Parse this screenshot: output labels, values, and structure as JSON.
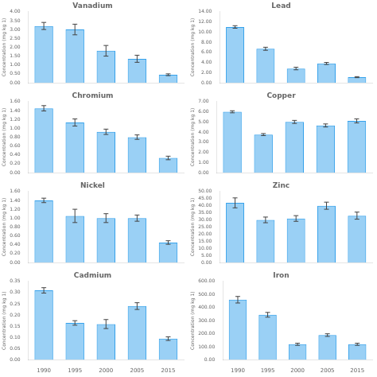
{
  "chart_data": [
    {
      "type": "bar",
      "title": "Vanadium",
      "ylabel": "Concentration (mg kg 1)",
      "categories": [
        "1990",
        "1995",
        "2000",
        "2005",
        "2015"
      ],
      "values": [
        3.2,
        3.0,
        1.8,
        1.35,
        0.45
      ],
      "errors": [
        0.2,
        0.3,
        0.3,
        0.2,
        0.05
      ],
      "ylim": [
        0,
        4.0
      ],
      "yticks": [
        {
          "value": 0.0,
          "label": "0.00"
        },
        {
          "value": 0.5,
          "label": "0.50"
        },
        {
          "value": 1.0,
          "label": "1.00"
        },
        {
          "value": 1.5,
          "label": "1.50"
        },
        {
          "value": 2.0,
          "label": "2.00"
        },
        {
          "value": 2.5,
          "label": "2.50"
        },
        {
          "value": 3.0,
          "label": "3.00"
        },
        {
          "value": 3.5,
          "label": "3.50"
        },
        {
          "value": 4.0,
          "label": "4.00"
        }
      ],
      "grid": false,
      "tick_labels": "y"
    },
    {
      "type": "bar",
      "title": "Lead",
      "ylabel": "Concentration (mg kg 1)",
      "categories": [
        "1990",
        "1995",
        "2000",
        "2005",
        "2015"
      ],
      "values": [
        11.0,
        6.7,
        2.8,
        3.8,
        1.1
      ],
      "errors": [
        0.25,
        0.3,
        0.25,
        0.2,
        0.1
      ],
      "ylim": [
        0,
        14.0
      ],
      "yticks": [
        {
          "value": 0.0,
          "label": "0.00"
        },
        {
          "value": 2.0,
          "label": "2.00"
        },
        {
          "value": 4.0,
          "label": "4.00"
        },
        {
          "value": 6.0,
          "label": "6.00"
        },
        {
          "value": 8.0,
          "label": "8.00"
        },
        {
          "value": 10.0,
          "label": "10.00"
        },
        {
          "value": 12.0,
          "label": "12.00"
        },
        {
          "value": 14.0,
          "label": "14.00"
        }
      ],
      "grid": false,
      "tick_labels": "y"
    },
    {
      "type": "bar",
      "title": "Chromium",
      "ylabel": "Concentration (mg kg 1)",
      "categories": [
        "1990",
        "1995",
        "2000",
        "2005",
        "2015"
      ],
      "values": [
        1.45,
        1.13,
        0.92,
        0.8,
        0.33
      ],
      "errors": [
        0.06,
        0.08,
        0.06,
        0.05,
        0.04
      ],
      "ylim": [
        0,
        1.6
      ],
      "yticks": [
        {
          "value": 0.0,
          "label": "0.00"
        },
        {
          "value": 0.2,
          "label": "0.20"
        },
        {
          "value": 0.4,
          "label": "0.40"
        },
        {
          "value": 0.6,
          "label": "0.60"
        },
        {
          "value": 0.8,
          "label": "0.80"
        },
        {
          "value": 1.0,
          "label": "1.00"
        },
        {
          "value": 1.2,
          "label": "1.20"
        },
        {
          "value": 1.4,
          "label": "1.40"
        },
        {
          "value": 1.6,
          "label": "1.60"
        }
      ],
      "grid": false,
      "tick_labels": "y"
    },
    {
      "type": "bar",
      "title": "Copper",
      "ylabel": "Concentration (mg kg 1)",
      "categories": [
        "1990",
        "1995",
        "2000",
        "2005",
        "2015"
      ],
      "values": [
        6.0,
        3.75,
        5.0,
        4.65,
        5.1
      ],
      "errors": [
        0.1,
        0.1,
        0.15,
        0.15,
        0.2
      ],
      "ylim": [
        0,
        7.0
      ],
      "yticks": [
        {
          "value": 0.0,
          "label": "0.00"
        },
        {
          "value": 1.0,
          "label": "1.00"
        },
        {
          "value": 2.0,
          "label": "2.00"
        },
        {
          "value": 3.0,
          "label": "3.00"
        },
        {
          "value": 4.0,
          "label": "4.00"
        },
        {
          "value": 5.0,
          "label": "5.00"
        },
        {
          "value": 6.0,
          "label": "6.00"
        },
        {
          "value": 7.0,
          "label": "7.00"
        }
      ],
      "grid": false,
      "tick_labels": "y"
    },
    {
      "type": "bar",
      "title": "Nickel",
      "ylabel": "Concentration (mg kg 1)",
      "categories": [
        "1990",
        "1995",
        "2000",
        "2005",
        "2015"
      ],
      "values": [
        1.4,
        1.05,
        1.0,
        1.0,
        0.45
      ],
      "errors": [
        0.05,
        0.15,
        0.1,
        0.07,
        0.04
      ],
      "ylim": [
        0,
        1.6
      ],
      "yticks": [
        {
          "value": 0.0,
          "label": "0.00"
        },
        {
          "value": 0.2,
          "label": "0.20"
        },
        {
          "value": 0.4,
          "label": "0.40"
        },
        {
          "value": 0.6,
          "label": "0.60"
        },
        {
          "value": 0.8,
          "label": "0.80"
        },
        {
          "value": 1.0,
          "label": "1.00"
        },
        {
          "value": 1.2,
          "label": "1.20"
        },
        {
          "value": 1.4,
          "label": "1.40"
        },
        {
          "value": 1.6,
          "label": "1.60"
        }
      ],
      "grid": false,
      "tick_labels": "y"
    },
    {
      "type": "bar",
      "title": "Zinc",
      "ylabel": "Concentration (mg kg 1)",
      "categories": [
        "1990",
        "1995",
        "2000",
        "2005",
        "2015"
      ],
      "values": [
        42.0,
        30.0,
        31.0,
        40.0,
        33.0
      ],
      "errors": [
        3.5,
        2.0,
        2.0,
        2.5,
        2.5
      ],
      "ylim": [
        0,
        50.0
      ],
      "yticks": [
        {
          "value": 0.0,
          "label": "0.00"
        },
        {
          "value": 5.0,
          "label": "5.00"
        },
        {
          "value": 10.0,
          "label": "10.00"
        },
        {
          "value": 15.0,
          "label": "15.00"
        },
        {
          "value": 20.0,
          "label": "20.00"
        },
        {
          "value": 25.0,
          "label": "25.00"
        },
        {
          "value": 30.0,
          "label": "30.00"
        },
        {
          "value": 35.0,
          "label": "35.00"
        },
        {
          "value": 40.0,
          "label": "40.00"
        },
        {
          "value": 45.0,
          "label": "45.00"
        },
        {
          "value": 50.0,
          "label": "50.00"
        }
      ],
      "grid": false,
      "tick_labels": "y"
    },
    {
      "type": "bar",
      "title": "Cadmium",
      "ylabel": "Concentration (mg kg 1)",
      "categories": [
        "1990",
        "1995",
        "2000",
        "2005",
        "2015"
      ],
      "values": [
        0.31,
        0.165,
        0.16,
        0.24,
        0.095
      ],
      "errors": [
        0.012,
        0.01,
        0.02,
        0.015,
        0.008
      ],
      "ylim": [
        0,
        0.35
      ],
      "yticks": [
        {
          "value": 0.0,
          "label": "0.00"
        },
        {
          "value": 0.05,
          "label": "0.05"
        },
        {
          "value": 0.1,
          "label": "0.10"
        },
        {
          "value": 0.15,
          "label": "0.15"
        },
        {
          "value": 0.2,
          "label": "0.20"
        },
        {
          "value": 0.25,
          "label": "0.25"
        },
        {
          "value": 0.3,
          "label": "0.30"
        },
        {
          "value": 0.35,
          "label": "0.35"
        }
      ],
      "grid": false
    },
    {
      "type": "bar",
      "title": "Iron",
      "ylabel": "Concentration (mg kg 1)",
      "categories": [
        "1990",
        "1995",
        "2000",
        "2005",
        "2015"
      ],
      "values": [
        460.0,
        345.0,
        120.0,
        190.0,
        120.0
      ],
      "errors": [
        25.0,
        18.0,
        8.0,
        10.0,
        8.0
      ],
      "ylim": [
        0,
        600.0
      ],
      "yticks": [
        {
          "value": 0.0,
          "label": "0.00"
        },
        {
          "value": 100.0,
          "label": "100.00"
        },
        {
          "value": 200.0,
          "label": "200.00"
        },
        {
          "value": 300.0,
          "label": "300.00"
        },
        {
          "value": 400.0,
          "label": "400.00"
        },
        {
          "value": 500.0,
          "label": "500.00"
        },
        {
          "value": 600.0,
          "label": "600.00"
        }
      ],
      "grid": false
    }
  ]
}
